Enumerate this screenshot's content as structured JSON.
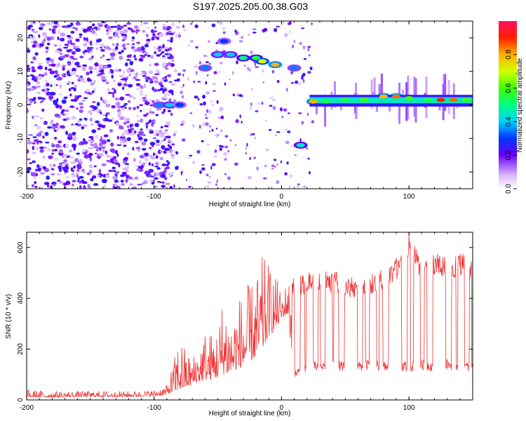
{
  "title": "S197.2025.205.00.38.G03",
  "chart_data": [
    {
      "type": "heatmap",
      "xlabel": "Height of straight line (km)",
      "ylabel": "Frequency (Hz)",
      "xlim": [
        -200,
        150
      ],
      "ylim": [
        -25,
        25
      ],
      "xticks": [
        -200,
        -100,
        0,
        100
      ],
      "yticks": [
        -20,
        -10,
        0,
        10,
        20
      ],
      "colorbar": {
        "label": "Normalized spectral amplitude",
        "ticks": [
          0.0,
          0.2,
          0.4,
          0.6,
          0.8
        ],
        "range": [
          0,
          1
        ]
      },
      "ridge": [
        {
          "x": -96,
          "freq": 0,
          "amp": 0.35
        },
        {
          "x": -88,
          "freq": 0,
          "amp": 0.4
        },
        {
          "x": -80,
          "freq": 0,
          "amp": 0.3
        },
        {
          "x": -60,
          "freq": 11,
          "amp": 0.35
        },
        {
          "x": -50,
          "freq": 15,
          "amp": 0.4
        },
        {
          "x": -45,
          "freq": 19,
          "amp": 0.3
        },
        {
          "x": -40,
          "freq": 15,
          "amp": 0.4
        },
        {
          "x": -30,
          "freq": 14,
          "amp": 0.5
        },
        {
          "x": -20,
          "freq": 14,
          "amp": 0.55
        },
        {
          "x": -15,
          "freq": 13,
          "amp": 0.7
        },
        {
          "x": -5,
          "freq": 12,
          "amp": 0.8
        },
        {
          "x": 10,
          "freq": 11,
          "amp": 0.35
        },
        {
          "x": 15,
          "freq": -12,
          "amp": 0.45
        },
        {
          "x": 25,
          "freq": 1,
          "amp": 0.8
        },
        {
          "x": 35,
          "freq": 1,
          "amp": 0.55
        },
        {
          "x": 50,
          "freq": 1.5,
          "amp": 0.55
        },
        {
          "x": 65,
          "freq": 1.5,
          "amp": 0.6
        },
        {
          "x": 80,
          "freq": 2.5,
          "amp": 0.8
        },
        {
          "x": 90,
          "freq": 2.5,
          "amp": 0.85
        },
        {
          "x": 100,
          "freq": 2,
          "amp": 0.6
        },
        {
          "x": 115,
          "freq": 1.5,
          "amp": 0.55
        },
        {
          "x": 125,
          "freq": 1.5,
          "amp": 0.9
        },
        {
          "x": 135,
          "freq": 1.5,
          "amp": 0.85
        },
        {
          "x": 145,
          "freq": 1.5,
          "amp": 0.6
        }
      ]
    },
    {
      "type": "line",
      "xlabel": "Height of straight line (km)",
      "ylabel": "SNR (10 * v/v)",
      "xlim": [
        -200,
        150
      ],
      "ylim": [
        0,
        660
      ],
      "xticks": [
        -200,
        -100,
        0,
        100
      ],
      "yticks": [
        0,
        200,
        400,
        600
      ],
      "color": "#ee3333",
      "series": [
        {
          "x": [
            -200,
            -180,
            -160,
            -140,
            -120,
            -100,
            -90,
            -85,
            -80,
            -75,
            -70,
            -65,
            -60,
            -55,
            -50,
            -45,
            -40,
            -35,
            -30,
            -25,
            -20,
            -15,
            -10,
            -5,
            0,
            5,
            10,
            20,
            30,
            40,
            50,
            60,
            70,
            80,
            90,
            100,
            110,
            120,
            130,
            140,
            150
          ],
          "envelope_low": [
            10,
            10,
            12,
            12,
            12,
            15,
            20,
            30,
            40,
            50,
            60,
            70,
            80,
            80,
            90,
            100,
            110,
            120,
            130,
            150,
            170,
            200,
            250,
            280,
            320,
            340,
            80,
            110,
            110,
            120,
            110,
            110,
            120,
            110,
            110,
            110,
            120,
            110,
            120,
            110,
            110
          ],
          "envelope_high": [
            40,
            35,
            35,
            35,
            35,
            40,
            60,
            150,
            260,
            200,
            170,
            230,
            280,
            270,
            290,
            450,
            320,
            400,
            440,
            460,
            480,
            570,
            540,
            500,
            420,
            480,
            480,
            500,
            520,
            510,
            500,
            470,
            500,
            520,
            560,
            650,
            560,
            580,
            560,
            580,
            560
          ]
        }
      ]
    }
  ]
}
